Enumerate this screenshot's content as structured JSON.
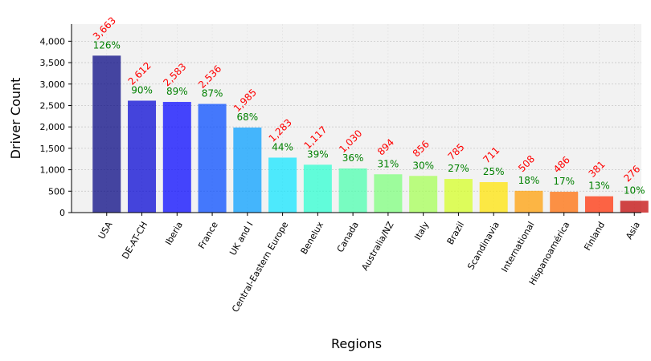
{
  "chart_data": {
    "type": "bar",
    "xlabel": "Regions",
    "ylabel": "Driver Count",
    "ylim": [
      0,
      4400
    ],
    "y_ticks": [
      "0",
      "500",
      "1,000",
      "1,500",
      "2,000",
      "2,500",
      "3,000",
      "3,500",
      "4,000"
    ],
    "grid": true,
    "categories": [
      "USA",
      "DE-AT-CH",
      "Iberia",
      "France",
      "UK and I",
      "Central-Eastern Europe",
      "Benelux",
      "Canada",
      "Australia/NZ",
      "Italy",
      "Brazil",
      "Scandinavia",
      "International",
      "Hispanoamérica",
      "Finland",
      "Asia"
    ],
    "values": [
      3663,
      2612,
      2583,
      2536,
      1985,
      1283,
      1117,
      1030,
      894,
      856,
      785,
      711,
      508,
      486,
      381,
      276
    ],
    "value_labels": [
      "3,663",
      "2,612",
      "2,583",
      "2,536",
      "1,985",
      "1,283",
      "1,117",
      "1,030",
      "894",
      "856",
      "785",
      "711",
      "508",
      "486",
      "381",
      "276"
    ],
    "percent_labels": [
      "126%",
      "90%",
      "89%",
      "87%",
      "68%",
      "44%",
      "39%",
      "36%",
      "31%",
      "30%",
      "27%",
      "25%",
      "18%",
      "17%",
      "13%",
      "10%"
    ],
    "bar_colors": [
      "#00007f",
      "#0000d2",
      "#0000ff",
      "#0048ff",
      "#009cff",
      "#0ce4ff",
      "#28ffd0",
      "#48ffad",
      "#7cff7a",
      "#a4ff52",
      "#d4ff20",
      "#ffe300",
      "#ff9c00",
      "#ff6a00",
      "#ff2b00",
      "#c00000"
    ],
    "count_label_color": "#ff0000",
    "percent_label_color": "#008000",
    "plot_background": "#f2f2f2"
  }
}
